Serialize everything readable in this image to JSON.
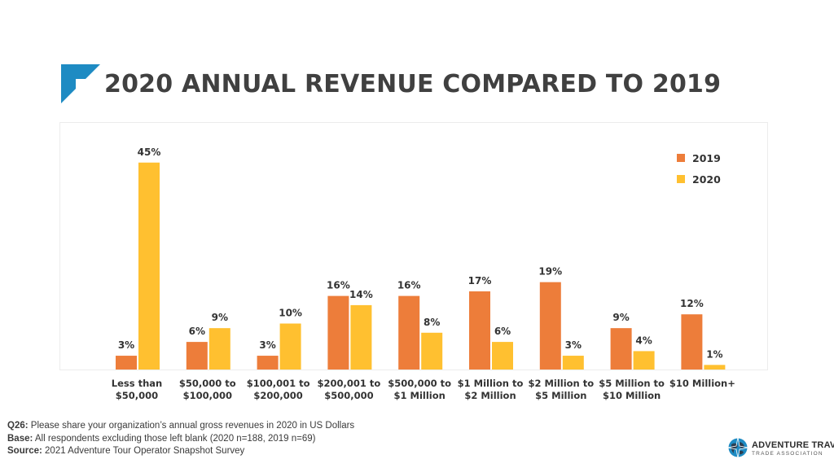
{
  "title": "2020 ANNUAL REVENUE COMPARED TO 2019",
  "colors": {
    "series_2019": "#ED7D3A",
    "series_2020": "#FFC030",
    "accent": "#1E8BC3",
    "text": "#3a3a3a"
  },
  "chart_data": {
    "type": "bar",
    "categories": [
      [
        "Less than",
        "$50,000"
      ],
      [
        "$50,000 to",
        "$100,000"
      ],
      [
        "$100,001 to",
        "$200,000"
      ],
      [
        "$200,001 to",
        "$500,000"
      ],
      [
        "$500,000 to",
        "$1 Million"
      ],
      [
        "$1 Million to",
        "$2 Million"
      ],
      [
        "$2 Million to",
        "$5 Million"
      ],
      [
        "$5 Million to",
        "$10 Million"
      ],
      [
        "$10 Million+"
      ]
    ],
    "series": [
      {
        "name": "2019",
        "values": [
          3,
          6,
          3,
          16,
          16,
          17,
          19,
          9,
          12
        ],
        "labels": [
          "3%",
          "6%",
          "3%",
          "16%",
          "16%",
          "17%",
          "19%",
          "9%",
          "12%"
        ]
      },
      {
        "name": "2020",
        "values": [
          45,
          9,
          10,
          14,
          8,
          6,
          3,
          4,
          1
        ],
        "labels": [
          "45%",
          "9%",
          "10%",
          "14%",
          "8%",
          "6%",
          "3%",
          "4%",
          "1%"
        ]
      }
    ],
    "ylim": [
      0,
      45
    ],
    "legend_position": "top-right",
    "grid": false
  },
  "notes": {
    "q_label": "Q26:",
    "q_text": " Please share your organization’s annual gross revenues in 2020 in US Dollars",
    "base_label": "Base:",
    "base_text": " All respondents excluding those left blank (2020 n=188, 2019 n=69)",
    "source_label": "Source:",
    "source_text": " 2021 Adventure Tour Operator Snapshot Survey"
  },
  "brand": {
    "name": "ADVENTURE TRAVEL",
    "sub": "TRADE ASSOCIATION"
  }
}
